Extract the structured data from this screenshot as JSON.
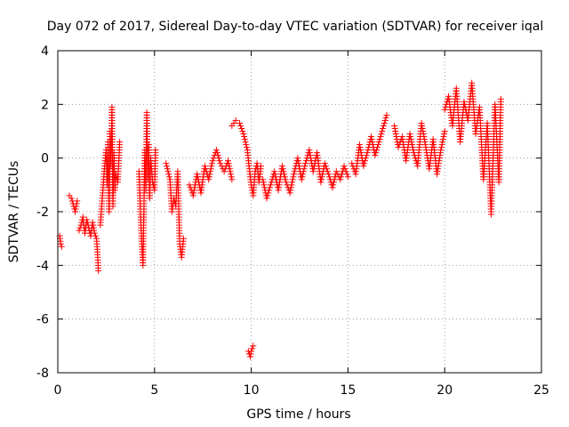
{
  "chart_data": {
    "type": "scatter",
    "title": "Day 072 of 2017, Sidereal Day-to-day VTEC variation (SDTVAR) for receiver iqal",
    "xlabel": "GPS time / hours",
    "ylabel": "SDTVAR / TECUs",
    "xlim": [
      0,
      25
    ],
    "ylim": [
      -8,
      4
    ],
    "xticks": [
      0,
      5,
      10,
      15,
      20,
      25
    ],
    "yticks": [
      -8,
      -6,
      -4,
      -2,
      0,
      2,
      4
    ],
    "xtick_labels": [
      "0",
      "5",
      "10",
      "15",
      "20",
      "25"
    ],
    "ytick_labels": [
      "-8",
      "-6",
      "-4",
      "-2",
      "0",
      "2",
      "4"
    ],
    "grid": true,
    "marker": "+",
    "color": "#ff0000",
    "segments": [
      {
        "x": [
          0.1,
          0.15,
          0.2
        ],
        "y": [
          -2.9,
          -3.2,
          -3.3
        ]
      },
      {
        "x": [
          0.6,
          0.7,
          0.75,
          0.9,
          1.0
        ],
        "y": [
          -1.4,
          -1.5,
          -1.6,
          -2.0,
          -1.6
        ]
      },
      {
        "x": [
          1.1,
          1.2,
          1.3,
          1.4,
          1.5,
          1.6,
          1.7,
          1.8,
          1.9,
          2.0,
          2.05,
          2.1
        ],
        "y": [
          -2.7,
          -2.5,
          -2.2,
          -2.8,
          -2.3,
          -2.6,
          -2.9,
          -2.4,
          -2.8,
          -3.0,
          -3.5,
          -4.2
        ]
      },
      {
        "x": [
          2.2,
          2.3,
          2.4,
          2.5,
          2.55,
          2.6,
          2.65,
          2.7,
          2.75,
          2.8,
          2.85,
          2.9,
          2.95,
          3.0,
          3.1,
          3.2
        ],
        "y": [
          -2.5,
          -1.5,
          -0.5,
          0.3,
          -1.0,
          0.6,
          -2.0,
          1.0,
          -0.3,
          1.9,
          -1.8,
          0.2,
          -1.2,
          -0.6,
          -0.9,
          0.6
        ]
      },
      {
        "x": [
          4.2,
          4.25,
          4.3,
          4.35,
          4.4,
          4.45,
          4.5,
          4.55,
          4.6,
          4.65,
          4.7,
          4.75,
          4.8,
          4.9,
          5.0,
          5.05
        ],
        "y": [
          -0.5,
          -1.5,
          -2.5,
          -3.3,
          -4.0,
          -2.0,
          0.3,
          -1.2,
          1.7,
          -0.8,
          0.5,
          -1.5,
          0.0,
          -0.9,
          -1.2,
          0.3
        ]
      },
      {
        "x": [
          5.6,
          5.8,
          5.9,
          6.0,
          6.1,
          6.2,
          6.3,
          6.4,
          6.5
        ],
        "y": [
          -0.2,
          -0.8,
          -2.0,
          -1.5,
          -1.8,
          -0.5,
          -3.2,
          -3.7,
          -3.0
        ]
      },
      {
        "x": [
          6.8,
          7.0,
          7.2,
          7.4,
          7.6,
          7.8,
          8.0,
          8.2,
          8.4,
          8.6,
          8.8,
          9.0
        ],
        "y": [
          -1.0,
          -1.4,
          -0.6,
          -1.3,
          -0.3,
          -0.8,
          -0.1,
          0.3,
          -0.2,
          -0.5,
          -0.1,
          -0.8
        ]
      },
      {
        "x": [
          9.0,
          9.2,
          9.4,
          9.6,
          9.8,
          9.9,
          10.0,
          10.1,
          10.2,
          10.3,
          10.4,
          10.5
        ],
        "y": [
          1.2,
          1.4,
          1.3,
          0.9,
          0.3,
          -0.4,
          -1.0,
          -1.4,
          -0.5,
          -0.2,
          -0.9,
          -0.3
        ]
      },
      {
        "x": [
          9.85,
          9.9,
          9.95,
          10.0,
          10.05,
          10.1
        ],
        "y": [
          -7.2,
          -7.3,
          -7.4,
          -7.2,
          -7.1,
          -7.0
        ]
      },
      {
        "x": [
          10.6,
          10.8,
          11.0,
          11.2,
          11.4,
          11.6,
          11.8,
          12.0,
          12.2,
          12.4,
          12.6,
          12.8,
          13.0,
          13.2,
          13.4,
          13.6,
          13.8,
          14.0,
          14.2,
          14.4,
          14.6,
          14.8,
          15.0
        ],
        "y": [
          -0.8,
          -1.5,
          -1.0,
          -0.5,
          -1.2,
          -0.3,
          -0.9,
          -1.3,
          -0.6,
          0.0,
          -0.8,
          -0.2,
          0.3,
          -0.5,
          0.2,
          -0.9,
          -0.2,
          -0.6,
          -1.1,
          -0.5,
          -0.8,
          -0.3,
          -0.7
        ]
      },
      {
        "x": [
          15.2,
          15.4,
          15.6,
          15.8,
          16.0,
          16.2,
          16.4,
          16.6,
          16.8,
          17.0
        ],
        "y": [
          -0.2,
          -0.6,
          0.5,
          -0.3,
          0.2,
          0.8,
          0.1,
          0.6,
          1.1,
          1.6
        ]
      },
      {
        "x": [
          17.4,
          17.6,
          17.8,
          18.0,
          18.2,
          18.4,
          18.6,
          18.8,
          19.0,
          19.2,
          19.4,
          19.6,
          19.8,
          20.0
        ],
        "y": [
          1.2,
          0.4,
          0.8,
          -0.1,
          0.9,
          0.2,
          -0.3,
          1.3,
          0.5,
          -0.4,
          0.7,
          -0.6,
          0.3,
          1.0
        ]
      },
      {
        "x": [
          20.0,
          20.2,
          20.4,
          20.6,
          20.8,
          21.0,
          21.2,
          21.4,
          21.6,
          21.8,
          22.0,
          22.2,
          22.4,
          22.6,
          22.8,
          22.9
        ],
        "y": [
          1.8,
          2.3,
          1.2,
          2.6,
          0.6,
          2.1,
          1.4,
          2.8,
          0.9,
          1.9,
          -0.8,
          1.3,
          -2.1,
          2.0,
          -0.9,
          2.2
        ]
      }
    ]
  }
}
